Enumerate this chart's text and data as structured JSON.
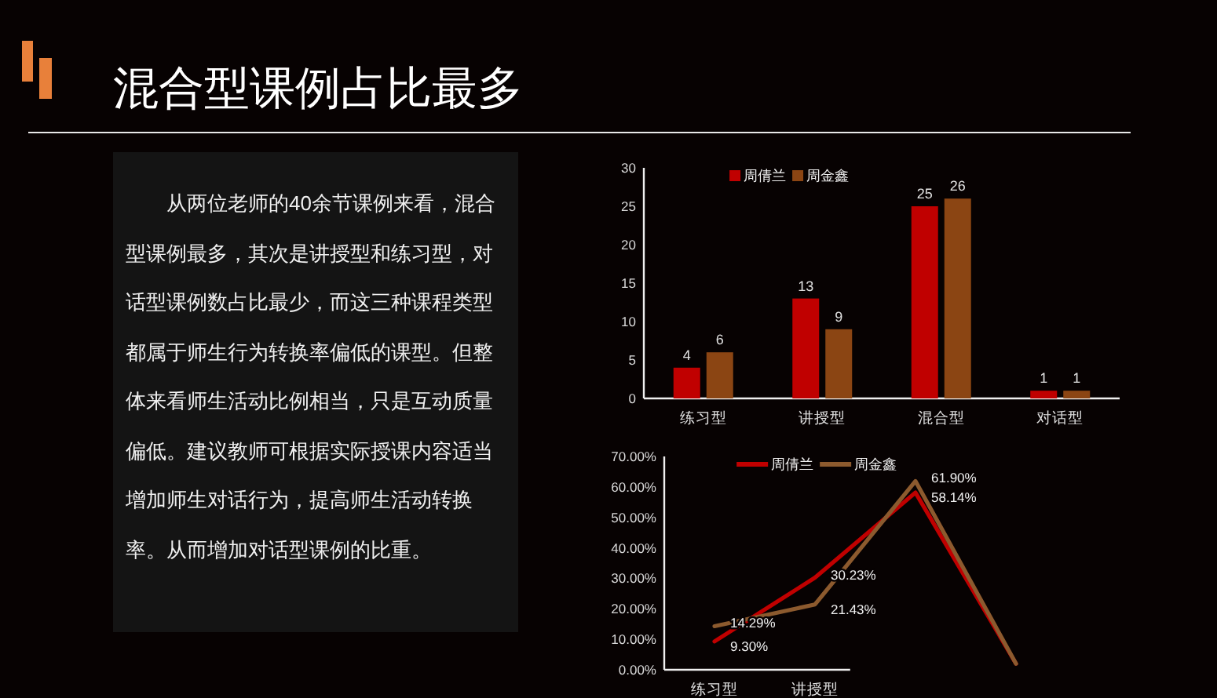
{
  "chart_data": [
    {
      "type": "other",
      "title": "混合型课例占比最多",
      "annotations": [
        "从两位老师的40余节课例来看，混合型课例最多，其次是讲授型和练习型，对话型课例数占比最少，而这三种课程类型都属于师生行为转换率偏低的课型。但整体来看师生活动比例相当，只是互动质量偏低。建议教师可根据实际授课内容适当增加师生对话行为，提高师生活动转换率。从而增加对话型课例的比重。"
      ]
    },
    {
      "type": "bar",
      "categories": [
        "练习型",
        "讲授型",
        "混合型",
        "对话型"
      ],
      "series": [
        {
          "name": "周倩兰",
          "color": "#c00000",
          "values": [
            4,
            13,
            25,
            1
          ]
        },
        {
          "name": "周金鑫",
          "color": "#8b4513",
          "values": [
            6,
            9,
            26,
            1
          ]
        }
      ],
      "ylim": [
        0,
        30
      ],
      "yticks": [
        0,
        5,
        10,
        15,
        20,
        25,
        30
      ],
      "data_labels": true,
      "legend": "top"
    },
    {
      "type": "line",
      "categories": [
        "练习型",
        "讲授型",
        null,
        null
      ],
      "series": [
        {
          "name": "周倩兰",
          "color": "#c00000",
          "values": [
            9.3,
            30.23,
            58.14,
            2
          ],
          "value_labels": [
            "9.30%",
            "30.23%",
            "58.14%",
            null
          ]
        },
        {
          "name": "周金鑫",
          "color": "#8c5a2e",
          "values": [
            14.29,
            21.43,
            61.9,
            2
          ],
          "value_labels": [
            "14.29%",
            "21.43%",
            "61.90%",
            null
          ]
        }
      ],
      "ylim": [
        0,
        70
      ],
      "yticks": [
        {
          "value": 0,
          "label": "0.00%"
        },
        {
          "value": 10,
          "label": "10.00%"
        },
        {
          "value": 20,
          "label": "20.00%"
        },
        {
          "value": 30,
          "label": "30.00%"
        },
        {
          "value": 40,
          "label": "40.00%"
        },
        {
          "value": 50,
          "label": "50.00%"
        },
        {
          "value": 60,
          "label": "60.00%"
        },
        {
          "value": 70,
          "label": "70.00%"
        }
      ],
      "legend": "top"
    }
  ]
}
